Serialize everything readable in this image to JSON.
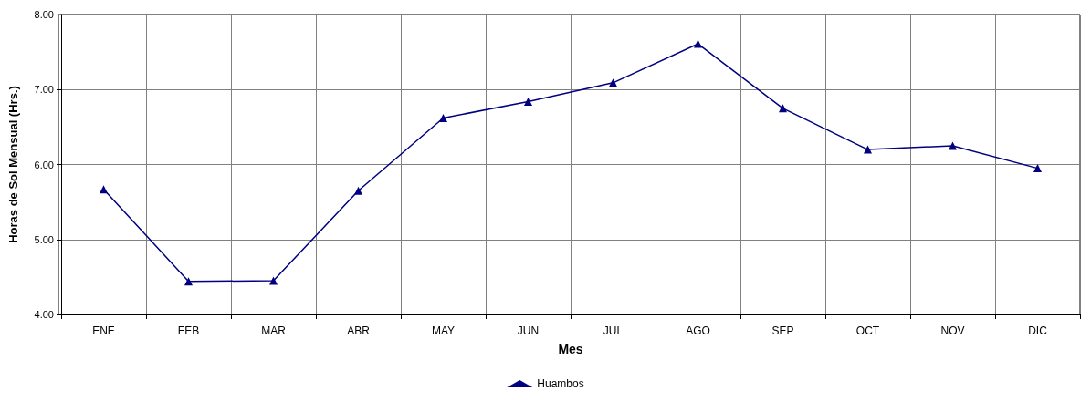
{
  "chart_data": {
    "type": "line",
    "xlabel": "Mes",
    "ylabel": "Horas de Sol Mensual (Hrs.)",
    "categories": [
      "ENE",
      "FEB",
      "MAR",
      "ABR",
      "MAY",
      "JUN",
      "JUL",
      "AGO",
      "SEP",
      "OCT",
      "NOV",
      "DIC"
    ],
    "series": [
      {
        "name": "Huambos",
        "color": "#000080",
        "values": [
          5.67,
          4.44,
          4.45,
          5.65,
          6.62,
          6.84,
          7.09,
          7.61,
          6.75,
          6.2,
          6.25,
          5.95
        ]
      }
    ],
    "ylim": [
      4,
      8
    ],
    "yticks": [
      {
        "value": 4,
        "label": "4.00"
      },
      {
        "value": 5,
        "label": "5.00"
      },
      {
        "value": 6,
        "label": "6.00"
      },
      {
        "value": 7,
        "label": "7.00"
      },
      {
        "value": 8,
        "label": "8.00"
      }
    ],
    "grid": true,
    "legend": "bottom",
    "marker": "triangle",
    "line_style": "solid"
  }
}
